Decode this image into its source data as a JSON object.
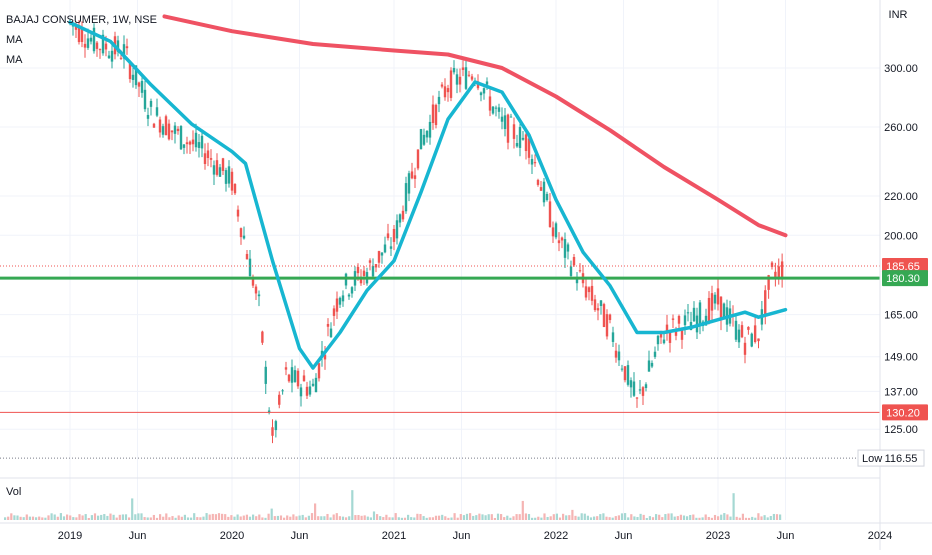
{
  "legend": {
    "symbol": "BAJAJ CONSUMER, 1W, NSE",
    "ma1": "MA",
    "ma2": "MA"
  },
  "volume_label": "Vol",
  "currency": "INR",
  "low_label": "Low",
  "colors": {
    "up": "#26a69a",
    "down": "#ef5350",
    "ma_fast": "#17b6d1",
    "ma_slow": "#ef5263",
    "support": "#35a853",
    "bg": "#ffffff",
    "grid": "#f0f3fa"
  },
  "chart_data": {
    "type": "line",
    "y_scale": "log",
    "ylim": [
      112,
      340
    ],
    "y_ticks": [
      "300.00",
      "260.00",
      "220.00",
      "200.00",
      "165.00",
      "149.00",
      "137.00",
      "125.00"
    ],
    "x_ticks": [
      "2019",
      "Jun",
      "2020",
      "Jun",
      "2021",
      "Jun",
      "2022",
      "Jun",
      "2023",
      "Jun",
      "2024"
    ],
    "price_levels": [
      {
        "label": "185.65",
        "value": 185.65,
        "kind": "last-price"
      },
      {
        "label": "180.30",
        "value": 180.3,
        "kind": "support-line"
      },
      {
        "label": "130.20",
        "value": 130.2,
        "kind": "horizontal-line"
      },
      {
        "label": "116.55",
        "value": 116.55,
        "kind": "period-low"
      }
    ],
    "series": [
      {
        "name": "MA",
        "points": [
          [
            "2019-01",
            335
          ],
          [
            "2019-04",
            320
          ],
          [
            "2019-07",
            288
          ],
          [
            "2019-10",
            262
          ],
          [
            "2020-01",
            245
          ],
          [
            "2020-02",
            238
          ],
          [
            "2020-04",
            188
          ],
          [
            "2020-06",
            152
          ],
          [
            "2020-07",
            145
          ],
          [
            "2020-09",
            158
          ],
          [
            "2020-11",
            175
          ],
          [
            "2021-01",
            188
          ],
          [
            "2021-03",
            222
          ],
          [
            "2021-05",
            265
          ],
          [
            "2021-07",
            290
          ],
          [
            "2021-09",
            283
          ],
          [
            "2021-11",
            255
          ],
          [
            "2022-01",
            218
          ],
          [
            "2022-03",
            192
          ],
          [
            "2022-05",
            177
          ],
          [
            "2022-07",
            158
          ],
          [
            "2022-09",
            158
          ],
          [
            "2022-11",
            160
          ],
          [
            "2023-01",
            163
          ],
          [
            "2023-03",
            166
          ],
          [
            "2023-04",
            164
          ],
          [
            "2023-06",
            167
          ]
        ]
      },
      {
        "name": "MA",
        "points": [
          [
            "2019-08",
            340
          ],
          [
            "2020-01",
            328
          ],
          [
            "2020-07",
            318
          ],
          [
            "2021-01",
            313
          ],
          [
            "2021-05",
            310
          ],
          [
            "2021-09",
            300
          ],
          [
            "2022-01",
            280
          ],
          [
            "2022-05",
            258
          ],
          [
            "2022-09",
            236
          ],
          [
            "2023-01",
            218
          ],
          [
            "2023-04",
            205
          ],
          [
            "2023-06",
            200
          ]
        ]
      },
      {
        "name": "price",
        "points": [
          [
            "2019-01",
            335
          ],
          [
            "2019-03",
            318
          ],
          [
            "2019-05",
            312
          ],
          [
            "2019-07",
            270
          ],
          [
            "2019-09",
            255
          ],
          [
            "2019-11",
            245
          ],
          [
            "2020-01",
            228
          ],
          [
            "2020-03",
            168
          ],
          [
            "2020-04",
            122
          ],
          [
            "2020-05",
            142
          ],
          [
            "2020-07",
            138
          ],
          [
            "2020-09",
            175
          ],
          [
            "2020-11",
            183
          ],
          [
            "2021-01",
            198
          ],
          [
            "2021-03",
            250
          ],
          [
            "2021-05",
            288
          ],
          [
            "2021-07",
            298
          ],
          [
            "2021-09",
            262
          ],
          [
            "2021-11",
            250
          ],
          [
            "2022-01",
            200
          ],
          [
            "2022-03",
            178
          ],
          [
            "2022-05",
            160
          ],
          [
            "2022-07",
            133
          ],
          [
            "2022-09",
            158
          ],
          [
            "2022-11",
            162
          ],
          [
            "2023-01",
            170
          ],
          [
            "2023-03",
            155
          ],
          [
            "2023-04",
            158
          ],
          [
            "2023-05",
            182
          ],
          [
            "2023-06",
            185.65
          ]
        ]
      }
    ]
  }
}
